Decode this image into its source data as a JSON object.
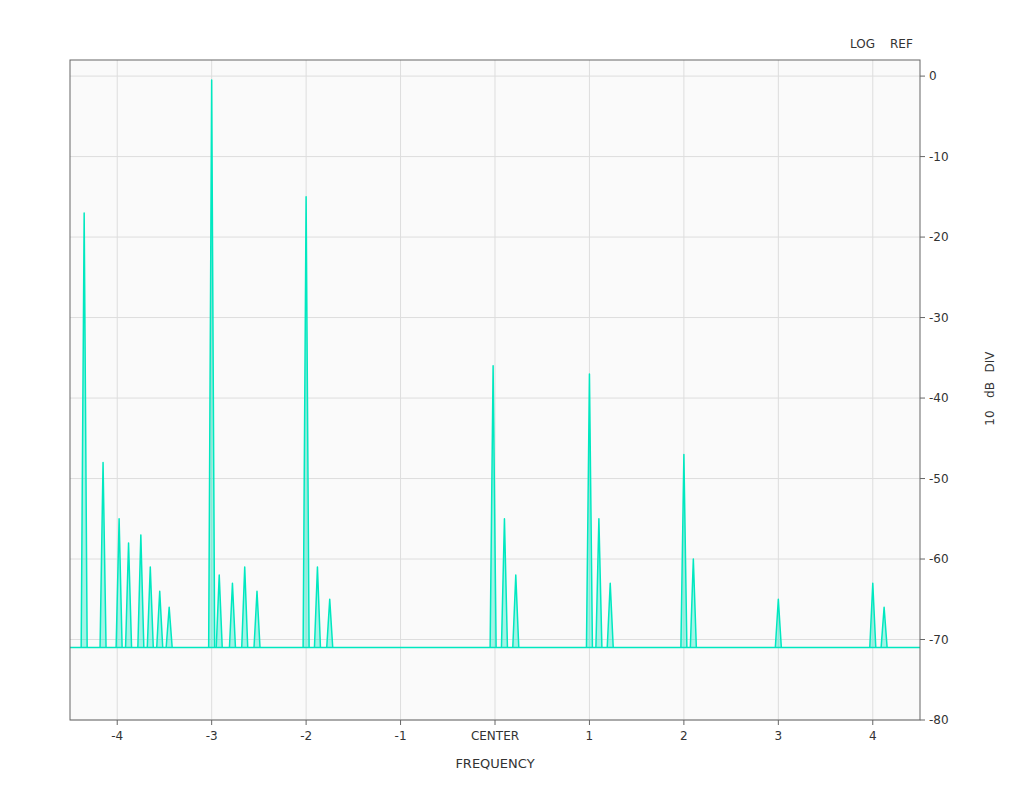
{
  "chart_data": {
    "type": "spectrum",
    "x": [
      -4.35,
      -4.15,
      -3.98,
      -3.88,
      -3.75,
      -3.65,
      -3.55,
      -3.45,
      -3.0,
      -2.92,
      -2.78,
      -2.65,
      -2.52,
      -2.0,
      -1.88,
      -1.75,
      -0.02,
      0.1,
      0.22,
      1.0,
      1.1,
      1.22,
      2.0,
      2.1,
      3.0,
      4.0,
      4.12
    ],
    "values": [
      -17,
      -48,
      -55,
      -58,
      -57,
      -61,
      -64,
      -66,
      -0.5,
      -62,
      -63,
      -61,
      -64,
      -15,
      -61,
      -65,
      -36,
      -55,
      -62,
      -37,
      -55,
      -63,
      -47,
      -60,
      -65,
      -63,
      -66
    ],
    "baseline": -71,
    "color": "#00e8c0",
    "xlim": [
      -4.5,
      4.5
    ],
    "ylim": [
      -80,
      2
    ],
    "xticks": [
      -4,
      -3,
      -2,
      -1,
      {
        "value": 0,
        "label": "CENTER"
      },
      1,
      2,
      3,
      4
    ],
    "yticks": [
      -80,
      -70,
      -60,
      -50,
      -40,
      -30,
      -20,
      -10,
      0
    ],
    "xlabel": "FREQUENCY",
    "annotations": [
      "LOG",
      "REF",
      "10",
      "dB",
      "DIV"
    ],
    "grid": true
  }
}
